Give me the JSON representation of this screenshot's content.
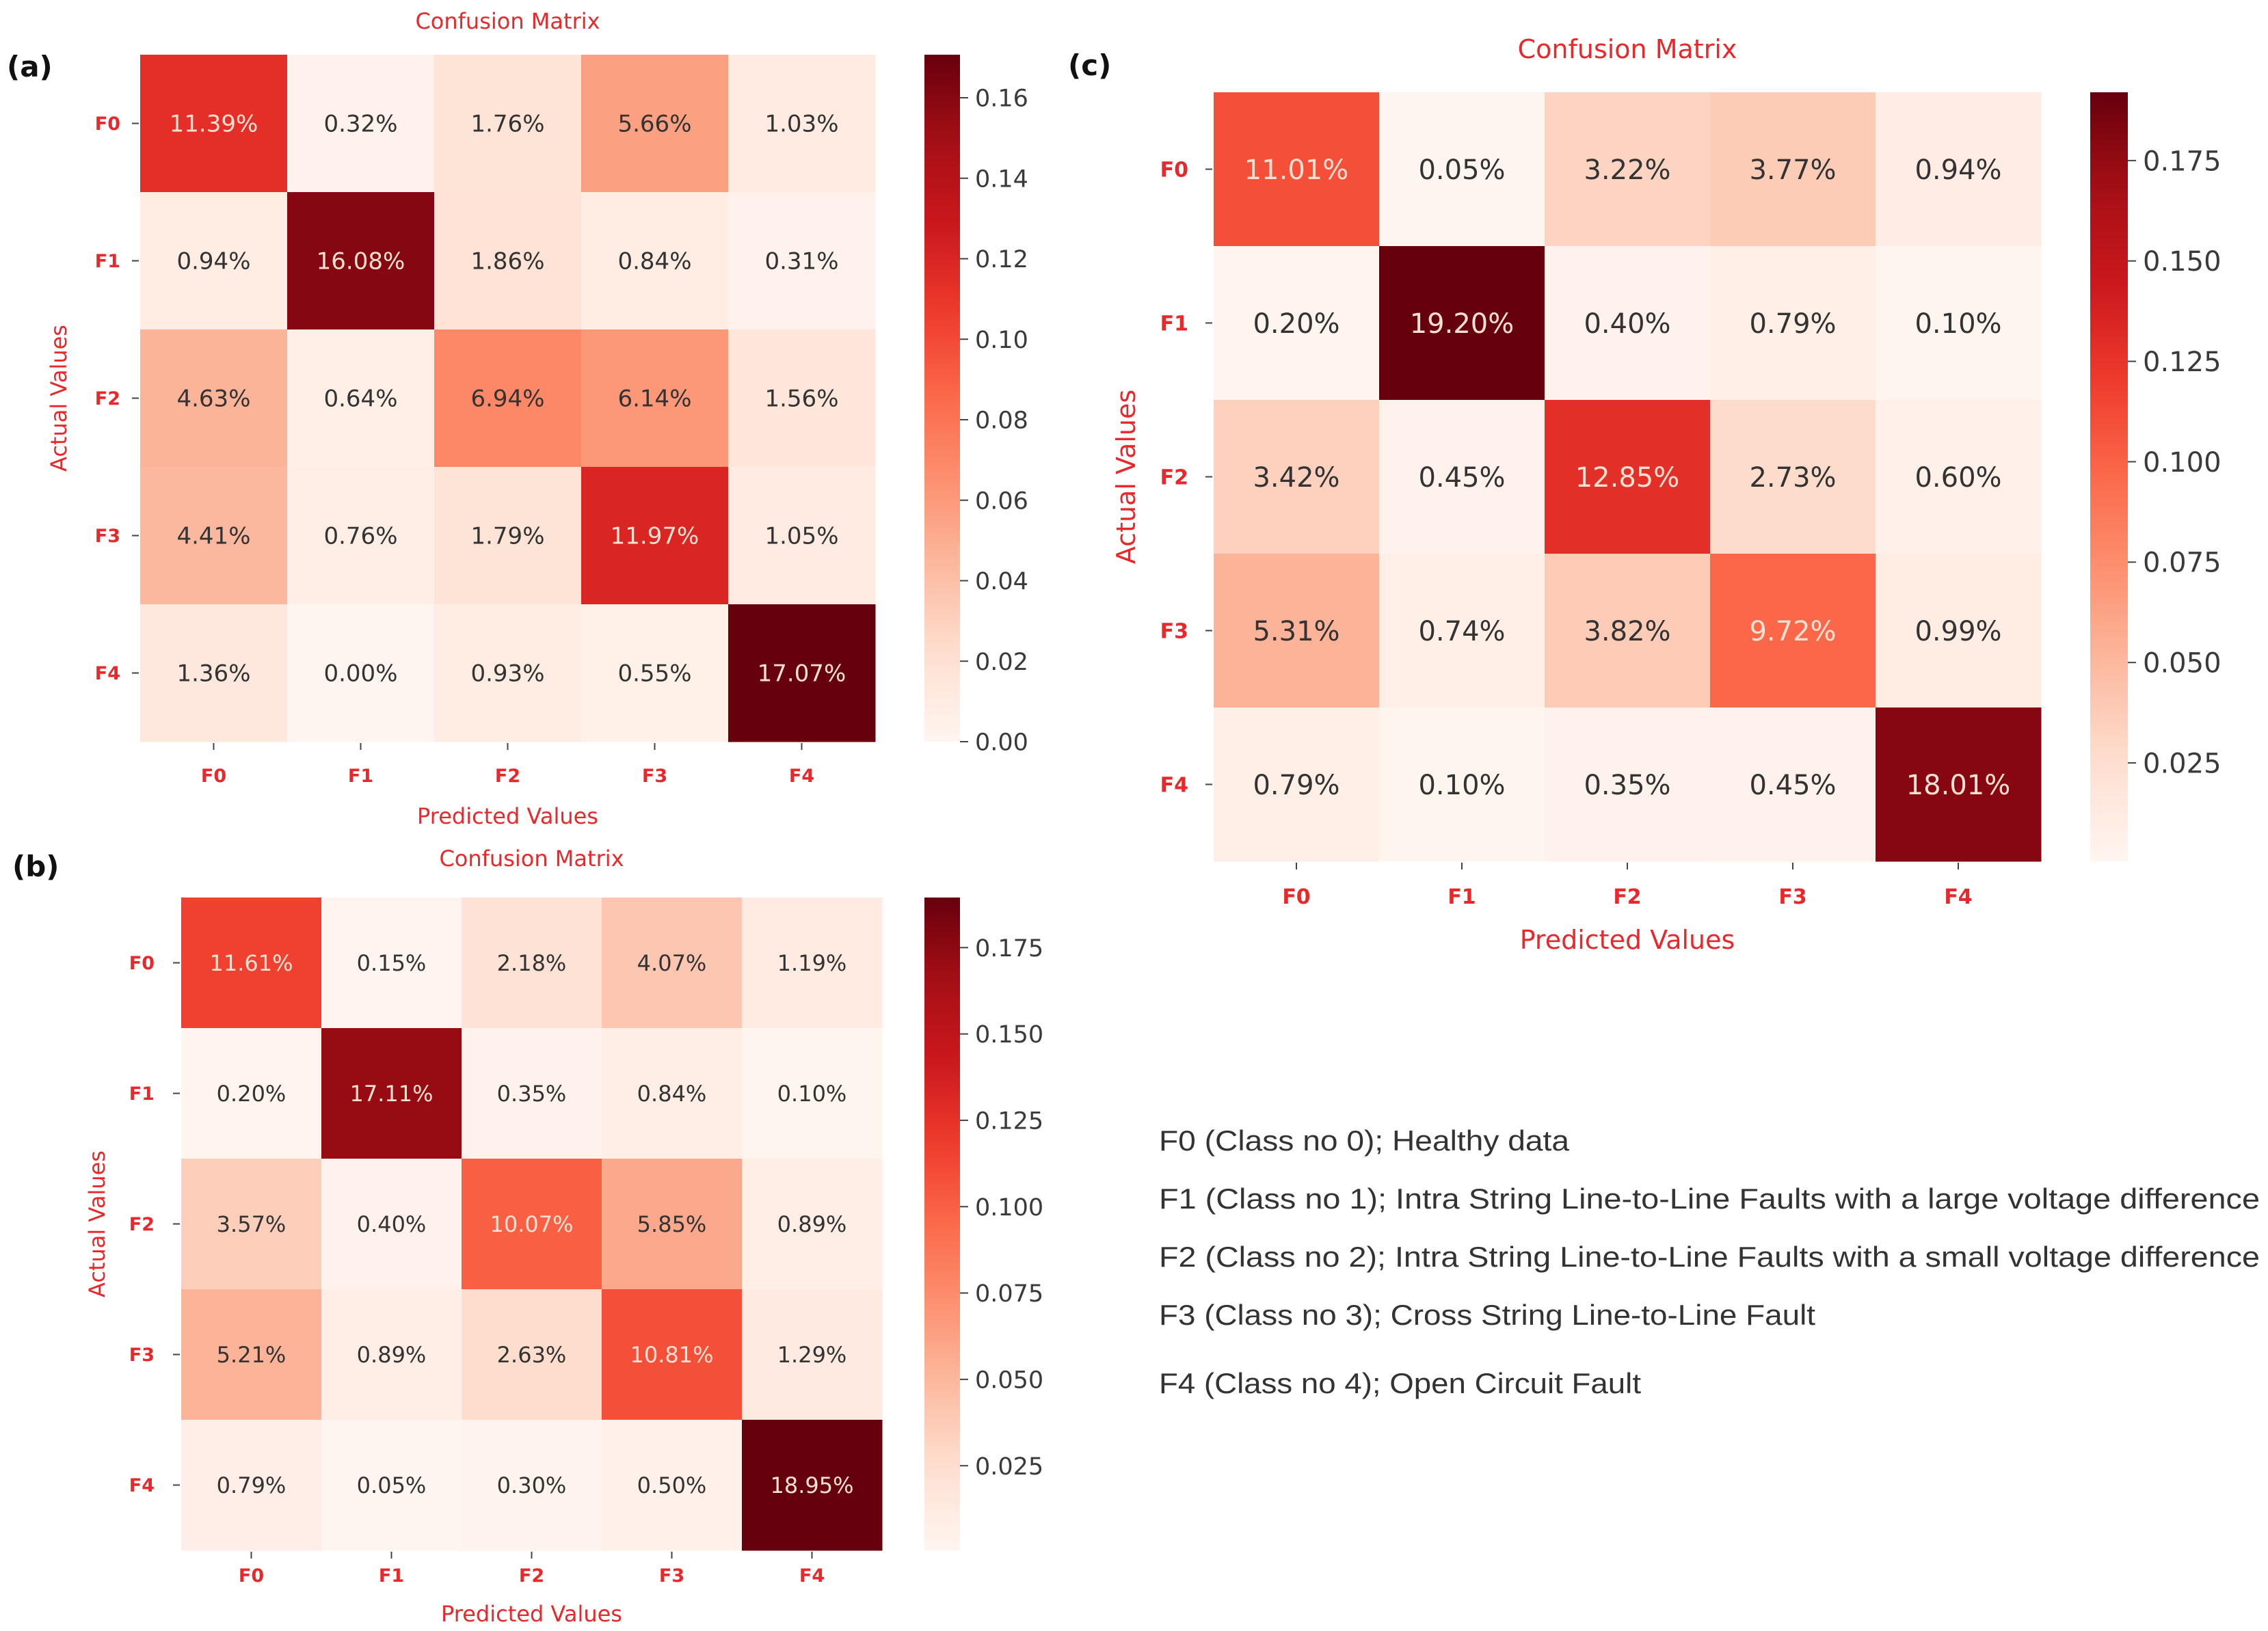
{
  "chart_data": [
    {
      "type": "heatmap",
      "panel_label": "(a)",
      "title": "Confusion Matrix",
      "xlabel": "Predicted Values",
      "ylabel": "Actual Values",
      "x_tick_labels": [
        "F0",
        "F1",
        "F2",
        "F3",
        "F4"
      ],
      "y_tick_labels": [
        "F0",
        "F1",
        "F2",
        "F3",
        "F4"
      ],
      "cells": [
        [
          "11.39%",
          "0.32%",
          "1.76%",
          "5.66%",
          "1.03%"
        ],
        [
          "0.94%",
          "16.08%",
          "1.86%",
          "0.84%",
          "0.31%"
        ],
        [
          "4.63%",
          "0.64%",
          "6.94%",
          "6.14%",
          "1.56%"
        ],
        [
          "4.41%",
          "0.76%",
          "1.79%",
          "11.97%",
          "1.05%"
        ],
        [
          "1.36%",
          "0.00%",
          "0.93%",
          "0.55%",
          "17.07%"
        ]
      ],
      "values": [
        [
          0.1139,
          0.0032,
          0.0176,
          0.0566,
          0.0103
        ],
        [
          0.0094,
          0.1608,
          0.0186,
          0.0084,
          0.0031
        ],
        [
          0.0463,
          0.0064,
          0.0694,
          0.0614,
          0.0156
        ],
        [
          0.0441,
          0.0076,
          0.0179,
          0.1197,
          0.0105
        ],
        [
          0.0136,
          0.0,
          0.0093,
          0.0055,
          0.1707
        ]
      ],
      "colorbar": {
        "min": 0,
        "max": 0.1707,
        "tick_values": [
          0,
          0.02,
          0.04,
          0.06,
          0.08,
          0.1,
          0.12,
          0.14,
          0.16
        ],
        "tick_labels": [
          "0.00",
          "0.02",
          "0.04",
          "0.06",
          "0.08",
          "0.10",
          "0.12",
          "0.14",
          "0.16"
        ]
      }
    },
    {
      "type": "heatmap",
      "panel_label": "(b)",
      "title": "Confusion Matrix",
      "xlabel": "Predicted Values",
      "ylabel": "Actual Values",
      "x_tick_labels": [
        "F0",
        "F1",
        "F2",
        "F3",
        "F4"
      ],
      "y_tick_labels": [
        "F0",
        "F1",
        "F2",
        "F3",
        "F4"
      ],
      "cells": [
        [
          "11.61%",
          "0.15%",
          "2.18%",
          "4.07%",
          "1.19%"
        ],
        [
          "0.20%",
          "17.11%",
          "0.35%",
          "0.84%",
          "0.10%"
        ],
        [
          "3.57%",
          "0.40%",
          "10.07%",
          "5.85%",
          "0.89%"
        ],
        [
          "5.21%",
          "0.89%",
          "2.63%",
          "10.81%",
          "1.29%"
        ],
        [
          "0.79%",
          "0.05%",
          "0.30%",
          "0.50%",
          "18.95%"
        ]
      ],
      "values": [
        [
          0.1161,
          0.0015,
          0.0218,
          0.0407,
          0.0119
        ],
        [
          0.002,
          0.1711,
          0.0035,
          0.0084,
          0.001
        ],
        [
          0.0357,
          0.004,
          0.1007,
          0.0585,
          0.0089
        ],
        [
          0.0521,
          0.0089,
          0.0263,
          0.1081,
          0.0129
        ],
        [
          0.0079,
          0.0005,
          0.003,
          0.005,
          0.1895
        ]
      ],
      "colorbar": {
        "min": 0.0005,
        "max": 0.1895,
        "tick_values": [
          0.025,
          0.05,
          0.075,
          0.1,
          0.125,
          0.15,
          0.175
        ],
        "tick_labels": [
          "0.025",
          "0.050",
          "0.075",
          "0.100",
          "0.125",
          "0.150",
          "0.175"
        ]
      }
    },
    {
      "type": "heatmap",
      "panel_label": "(c)",
      "title": "Confusion Matrix",
      "xlabel": "Predicted Values",
      "ylabel": "Actual Values",
      "x_tick_labels": [
        "F0",
        "F1",
        "F2",
        "F3",
        "F4"
      ],
      "y_tick_labels": [
        "F0",
        "F1",
        "F2",
        "F3",
        "F4"
      ],
      "cells": [
        [
          "11.01%",
          "0.05%",
          "3.22%",
          "3.77%",
          "0.94%"
        ],
        [
          "0.20%",
          "19.20%",
          "0.40%",
          "0.79%",
          "0.10%"
        ],
        [
          "3.42%",
          "0.45%",
          "12.85%",
          "2.73%",
          "0.60%"
        ],
        [
          "5.31%",
          "0.74%",
          "3.82%",
          "9.72%",
          "0.99%"
        ],
        [
          "0.79%",
          "0.10%",
          "0.35%",
          "0.45%",
          "18.01%"
        ]
      ],
      "values": [
        [
          0.1101,
          0.0005,
          0.0322,
          0.0377,
          0.0094
        ],
        [
          0.002,
          0.192,
          0.004,
          0.0079,
          0.001
        ],
        [
          0.0342,
          0.0045,
          0.1285,
          0.0273,
          0.006
        ],
        [
          0.0531,
          0.0074,
          0.0382,
          0.0972,
          0.0099
        ],
        [
          0.0079,
          0.001,
          0.0035,
          0.0045,
          0.1801
        ]
      ],
      "colorbar": {
        "min": 0.0005,
        "max": 0.192,
        "tick_values": [
          0.025,
          0.05,
          0.075,
          0.1,
          0.125,
          0.15,
          0.175
        ],
        "tick_labels": [
          "0.025",
          "0.050",
          "0.075",
          "0.100",
          "0.125",
          "0.150",
          "0.175"
        ]
      }
    }
  ],
  "legend": [
    "F0 (Class no 0);  Healthy data",
    "F1 (Class no 1);  Intra String Line-to-Line Faults with a large voltage difference",
    "F2 (Class no 2);  Intra String Line-to-Line Faults with a small voltage difference",
    "F3 (Class no 3);  Cross String Line-to-Line Fault",
    "F4 (Class no 4);  Open Circuit Fault"
  ],
  "colors": {
    "label_red": "#e8282a",
    "axis_text": "#3a3a3a",
    "cell_text_dark": "#333333",
    "cell_text_light": "#fde0d2"
  }
}
